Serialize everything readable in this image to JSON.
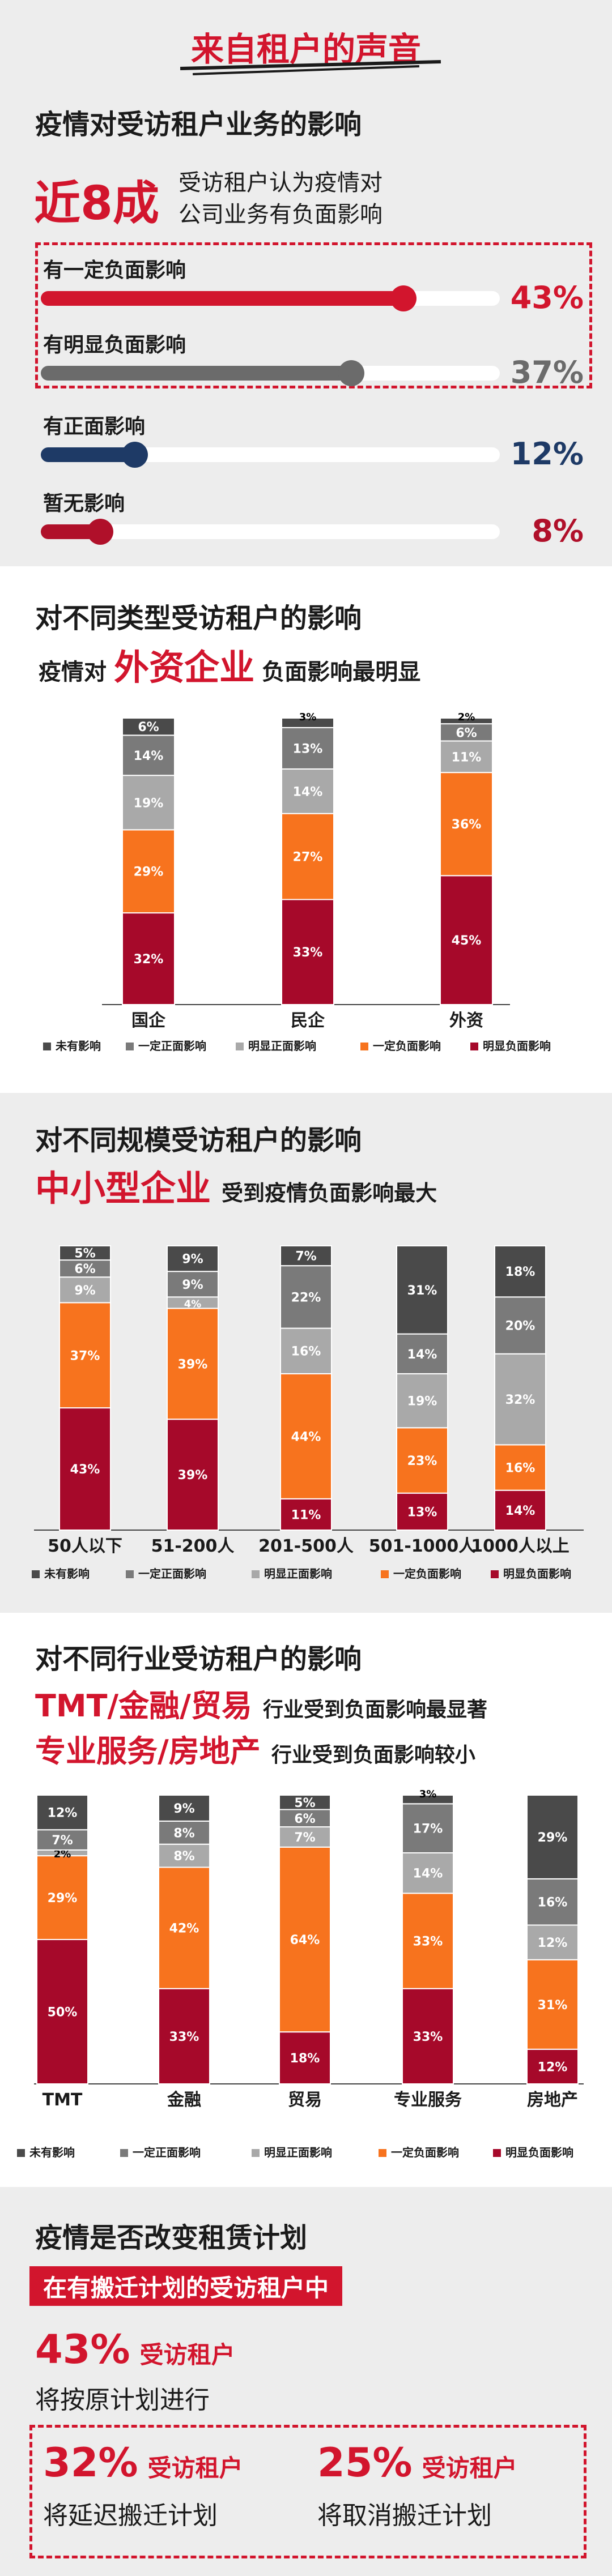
{
  "header": {
    "title": "来自租户的声音"
  },
  "impact": {
    "title": "疫情对受访租户业务的影响",
    "big": "近8成",
    "desc_line1": "受访租户认为疫情对",
    "desc_line2": "公司业务有负面影响",
    "bars": [
      {
        "label": "有一定负面影响",
        "value": 43,
        "display": "43%",
        "color": "#d2152d"
      },
      {
        "label": "有明显负面影响",
        "value": 37,
        "display": "37%",
        "color": "#6b6b6b"
      },
      {
        "label": "有正面影响",
        "value": 12,
        "display": "12%",
        "color": "#1e3a66"
      },
      {
        "label": "暂无影响",
        "value": 8,
        "display": "8%",
        "color": "#b0102a"
      }
    ]
  },
  "type_section": {
    "title": "对不同类型受访租户的影响",
    "sub_pre": "疫情对",
    "sub_highlight": "外资企业",
    "sub_post": "负面影响最明显"
  },
  "scale_section": {
    "title": "对不同规模受访租户的影响",
    "sub_highlight": "中小型企业",
    "sub_post": "受到疫情负面影响最大"
  },
  "industry_section": {
    "title": "对不同行业受访租户的影响",
    "line1_highlight": "TMT/金融/贸易",
    "line1_post": "行业受到负面影响最显著",
    "line2_highlight": "专业服务/房地产",
    "line2_post": "行业受到负面影响较小"
  },
  "legend": {
    "items": [
      "未有影响",
      "一定正面影响",
      "明显正面影响",
      "一定负面影响",
      "明显负面影响"
    ]
  },
  "colors": {
    "none": "#4a4a4a",
    "some_pos": "#7a7a7a",
    "clear_pos": "#a9a9a9",
    "some_neg": "#f7731e",
    "clear_neg": "#a6092a",
    "accent": "#d2152d"
  },
  "plan": {
    "title": "疫情是否改变租赁计划",
    "banner": "在有搬迁计划的受访租户中",
    "stat1_pct": "43%",
    "stat1_tail": "受访租户",
    "stat1_line2": "将按原计划进行",
    "stat2_pct": "32%",
    "stat2_tail": "受访租户",
    "stat2_line2": "将延迟搬迁计划",
    "stat3_pct": "25%",
    "stat3_tail": "受访租户",
    "stat3_line2": "将取消搬迁计划"
  },
  "chart_data": [
    {
      "type": "bar",
      "stacked": true,
      "categories": [
        "国企",
        "民企",
        "外资"
      ],
      "series": [
        {
          "name": "明显负面影响",
          "values": [
            32,
            33,
            45
          ]
        },
        {
          "name": "一定负面影响",
          "values": [
            29,
            27,
            36
          ]
        },
        {
          "name": "明显正面影响",
          "values": [
            19,
            14,
            11
          ]
        },
        {
          "name": "一定正面影响",
          "values": [
            14,
            13,
            6
          ]
        },
        {
          "name": "未有影响",
          "values": [
            6,
            3,
            2
          ]
        }
      ],
      "legend_position": "bottom"
    },
    {
      "type": "bar",
      "stacked": true,
      "categories": [
        "50人以下",
        "51-200人",
        "201-500人",
        "501-1000人",
        "1000人以上"
      ],
      "series": [
        {
          "name": "明显负面影响",
          "values": [
            43,
            39,
            11,
            13,
            14
          ]
        },
        {
          "name": "一定负面影响",
          "values": [
            37,
            39,
            44,
            23,
            16
          ]
        },
        {
          "name": "明显正面影响",
          "values": [
            9,
            4,
            16,
            19,
            32
          ]
        },
        {
          "name": "一定正面影响",
          "values": [
            6,
            9,
            22,
            14,
            20
          ]
        },
        {
          "name": "未有影响",
          "values": [
            5,
            9,
            7,
            31,
            18
          ]
        }
      ],
      "legend_position": "bottom"
    },
    {
      "type": "bar",
      "stacked": true,
      "categories": [
        "TMT",
        "金融",
        "贸易",
        "专业服务",
        "房地产"
      ],
      "series": [
        {
          "name": "明显负面影响",
          "values": [
            50,
            33,
            18,
            33,
            12
          ]
        },
        {
          "name": "一定负面影响",
          "values": [
            29,
            42,
            64,
            33,
            31
          ]
        },
        {
          "name": "明显正面影响",
          "values": [
            2,
            8,
            7,
            14,
            12
          ]
        },
        {
          "name": "一定正面影响",
          "values": [
            7,
            8,
            6,
            17,
            16
          ]
        },
        {
          "name": "未有影响",
          "values": [
            12,
            9,
            5,
            3,
            29
          ]
        }
      ],
      "legend_position": "bottom"
    }
  ]
}
